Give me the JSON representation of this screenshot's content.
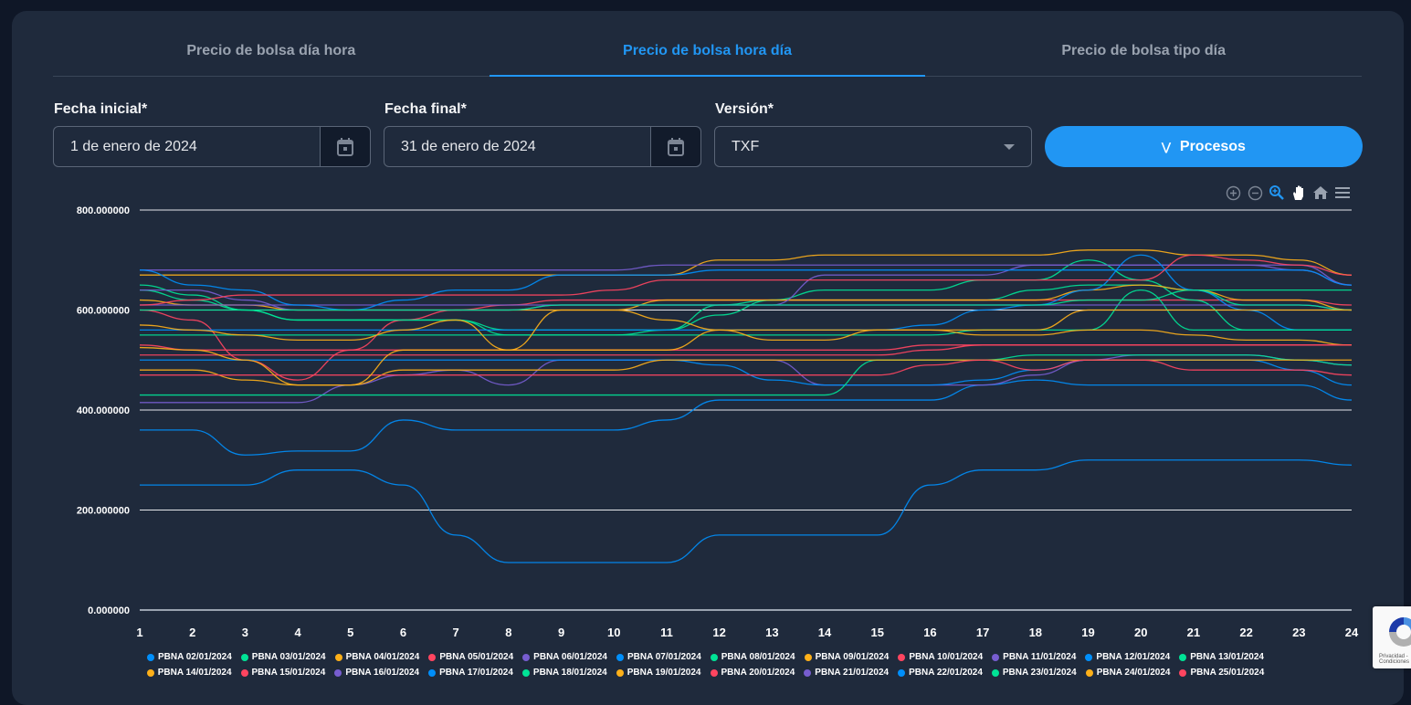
{
  "tabs": [
    {
      "label": "Precio de bolsa día hora",
      "active": false
    },
    {
      "label": "Precio de bolsa hora día",
      "active": true
    },
    {
      "label": "Precio de bolsa tipo día",
      "active": false
    }
  ],
  "form": {
    "fecha_inicial_label": "Fecha inicial*",
    "fecha_inicial_value": "1 de enero de 2024",
    "fecha_final_label": "Fecha final*",
    "fecha_final_value": "31 de enero de 2024",
    "version_label": "Versión*",
    "version_value": "TXF",
    "procesos_label": "Procesos"
  },
  "toolbar_icons": [
    "zoom-in-icon",
    "zoom-out-icon",
    "selection-zoom-icon",
    "pan-hand-icon",
    "home-reset-icon",
    "menu-icon"
  ],
  "colors": {
    "accent": "#2196f3",
    "palette": [
      "#008FFB",
      "#00E396",
      "#FEB019",
      "#FF4560",
      "#775DD0"
    ]
  },
  "recaptcha_text": "Privacidad - Condiciones",
  "chart_data": {
    "type": "line",
    "x": [
      1,
      2,
      3,
      4,
      5,
      6,
      7,
      8,
      9,
      10,
      11,
      12,
      13,
      14,
      15,
      16,
      17,
      18,
      19,
      20,
      21,
      22,
      23,
      24
    ],
    "xtick_labels": [
      "1",
      "2",
      "3",
      "4",
      "5",
      "6",
      "7",
      "8",
      "9",
      "10",
      "11",
      "12",
      "13",
      "14",
      "15",
      "16",
      "17",
      "18",
      "19",
      "20",
      "21",
      "22",
      "23",
      "24"
    ],
    "ylim": [
      0,
      800
    ],
    "ytick_labels": [
      "0.000000",
      "200.000000",
      "400.000000",
      "600.000000",
      "800.000000"
    ],
    "ytick_values": [
      0,
      200,
      400,
      600,
      800
    ],
    "grid": true,
    "legend": "bottom",
    "smooth": true,
    "series": [
      {
        "name": "PBNA 02/01/2024",
        "values": [
          360,
          360,
          310,
          318,
          318,
          380,
          360,
          360,
          360,
          360,
          380,
          420,
          420,
          420,
          420,
          420,
          450,
          460,
          450,
          450,
          450,
          450,
          450,
          420
        ]
      },
      {
        "name": "PBNA 03/01/2024",
        "values": [
          640,
          620,
          600,
          580,
          580,
          580,
          580,
          560,
          560,
          560,
          560,
          610,
          620,
          620,
          620,
          620,
          620,
          640,
          650,
          650,
          640,
          640,
          640,
          640
        ]
      },
      {
        "name": "PBNA 04/01/2024",
        "values": [
          670,
          670,
          670,
          670,
          670,
          670,
          670,
          670,
          670,
          670,
          670,
          700,
          700,
          710,
          710,
          710,
          710,
          710,
          720,
          720,
          710,
          710,
          700,
          670
        ]
      },
      {
        "name": "PBNA 05/01/2024",
        "values": [
          600,
          580,
          500,
          460,
          520,
          580,
          600,
          610,
          620,
          620,
          620,
          620,
          620,
          620,
          620,
          620,
          620,
          620,
          620,
          620,
          620,
          620,
          620,
          610
        ]
      },
      {
        "name": "PBNA 06/01/2024",
        "values": [
          680,
          680,
          680,
          680,
          680,
          680,
          680,
          680,
          680,
          680,
          690,
          690,
          690,
          690,
          690,
          690,
          690,
          690,
          690,
          690,
          690,
          690,
          680,
          650
        ]
      },
      {
        "name": "PBNA 07/01/2024",
        "values": [
          250,
          250,
          250,
          280,
          280,
          250,
          150,
          95,
          95,
          95,
          95,
          150,
          150,
          150,
          150,
          250,
          280,
          280,
          300,
          300,
          300,
          300,
          300,
          290
        ]
      },
      {
        "name": "PBNA 08/01/2024",
        "values": [
          650,
          630,
          600,
          580,
          580,
          580,
          580,
          550,
          550,
          550,
          560,
          590,
          620,
          640,
          640,
          640,
          660,
          660,
          700,
          660,
          620,
          560,
          560,
          560
        ]
      },
      {
        "name": "PBNA 09/01/2024",
        "values": [
          620,
          610,
          610,
          600,
          600,
          600,
          600,
          600,
          600,
          600,
          620,
          620,
          620,
          620,
          620,
          620,
          620,
          620,
          640,
          650,
          640,
          620,
          620,
          600
        ]
      },
      {
        "name": "PBNA 10/01/2024",
        "values": [
          530,
          520,
          520,
          520,
          520,
          520,
          520,
          520,
          520,
          520,
          520,
          520,
          520,
          520,
          520,
          530,
          530,
          530,
          530,
          530,
          530,
          530,
          530,
          530
        ]
      },
      {
        "name": "PBNA 11/01/2024",
        "values": [
          610,
          610,
          610,
          610,
          610,
          610,
          610,
          610,
          610,
          610,
          610,
          610,
          610,
          670,
          670,
          670,
          670,
          690,
          690,
          690,
          690,
          690,
          690,
          650
        ]
      },
      {
        "name": "PBNA 12/01/2024",
        "values": [
          560,
          560,
          560,
          560,
          560,
          560,
          560,
          560,
          560,
          560,
          560,
          560,
          560,
          560,
          560,
          570,
          600,
          610,
          640,
          710,
          640,
          600,
          560,
          560
        ]
      },
      {
        "name": "PBNA 13/01/2024",
        "values": [
          550,
          550,
          550,
          550,
          550,
          550,
          550,
          550,
          550,
          550,
          550,
          550,
          550,
          550,
          550,
          550,
          560,
          560,
          560,
          640,
          560,
          560,
          560,
          560
        ]
      },
      {
        "name": "PBNA 14/01/2024",
        "values": [
          570,
          560,
          550,
          540,
          540,
          560,
          580,
          520,
          600,
          600,
          580,
          560,
          540,
          540,
          560,
          560,
          550,
          550,
          560,
          560,
          550,
          540,
          540,
          530
        ]
      },
      {
        "name": "PBNA 15/01/2024",
        "values": [
          510,
          510,
          510,
          510,
          510,
          510,
          510,
          510,
          510,
          510,
          510,
          510,
          510,
          510,
          510,
          520,
          530,
          530,
          530,
          530,
          530,
          530,
          530,
          530
        ]
      },
      {
        "name": "PBNA 16/01/2024",
        "values": [
          415,
          415,
          415,
          415,
          450,
          470,
          480,
          450,
          500,
          500,
          500,
          500,
          500,
          450,
          450,
          450,
          450,
          470,
          500,
          510,
          510,
          510,
          500,
          490
        ]
      },
      {
        "name": "PBNA 17/01/2024",
        "values": [
          500,
          500,
          500,
          500,
          500,
          500,
          500,
          500,
          500,
          500,
          500,
          490,
          460,
          450,
          450,
          450,
          460,
          480,
          500,
          500,
          500,
          500,
          480,
          450
        ]
      },
      {
        "name": "PBNA 18/01/2024",
        "values": [
          430,
          430,
          430,
          430,
          430,
          430,
          430,
          430,
          430,
          430,
          430,
          430,
          430,
          430,
          500,
          500,
          500,
          510,
          510,
          510,
          510,
          510,
          500,
          490
        ]
      },
      {
        "name": "PBNA 19/01/2024",
        "values": [
          480,
          480,
          460,
          450,
          450,
          480,
          480,
          480,
          480,
          480,
          500,
          500,
          500,
          500,
          500,
          500,
          500,
          500,
          500,
          500,
          500,
          500,
          500,
          500
        ]
      },
      {
        "name": "PBNA 20/01/2024",
        "values": [
          470,
          470,
          470,
          470,
          470,
          470,
          470,
          470,
          470,
          470,
          470,
          470,
          470,
          470,
          470,
          490,
          500,
          480,
          500,
          500,
          480,
          480,
          480,
          470
        ]
      },
      {
        "name": "PBNA 21/01/2024",
        "values": [
          640,
          640,
          620,
          600,
          600,
          600,
          600,
          600,
          610,
          610,
          610,
          610,
          610,
          610,
          610,
          610,
          610,
          610,
          610,
          610,
          610,
          610,
          610,
          600
        ]
      },
      {
        "name": "PBNA 22/01/2024",
        "values": [
          680,
          650,
          640,
          610,
          600,
          620,
          640,
          640,
          670,
          670,
          670,
          680,
          680,
          680,
          680,
          680,
          680,
          680,
          680,
          680,
          680,
          680,
          680,
          650
        ]
      },
      {
        "name": "PBNA 23/01/2024",
        "values": [
          600,
          600,
          600,
          600,
          600,
          600,
          600,
          600,
          610,
          610,
          610,
          610,
          610,
          610,
          610,
          610,
          610,
          610,
          620,
          620,
          640,
          610,
          610,
          600
        ]
      },
      {
        "name": "PBNA 24/01/2024",
        "values": [
          525,
          520,
          500,
          450,
          450,
          520,
          520,
          520,
          520,
          520,
          520,
          560,
          560,
          560,
          560,
          560,
          560,
          560,
          600,
          600,
          600,
          600,
          600,
          600
        ]
      },
      {
        "name": "PBNA 25/01/2024",
        "values": [
          610,
          620,
          630,
          630,
          630,
          630,
          630,
          630,
          630,
          640,
          660,
          660,
          660,
          660,
          660,
          660,
          660,
          660,
          660,
          660,
          710,
          700,
          690,
          670
        ]
      }
    ]
  }
}
